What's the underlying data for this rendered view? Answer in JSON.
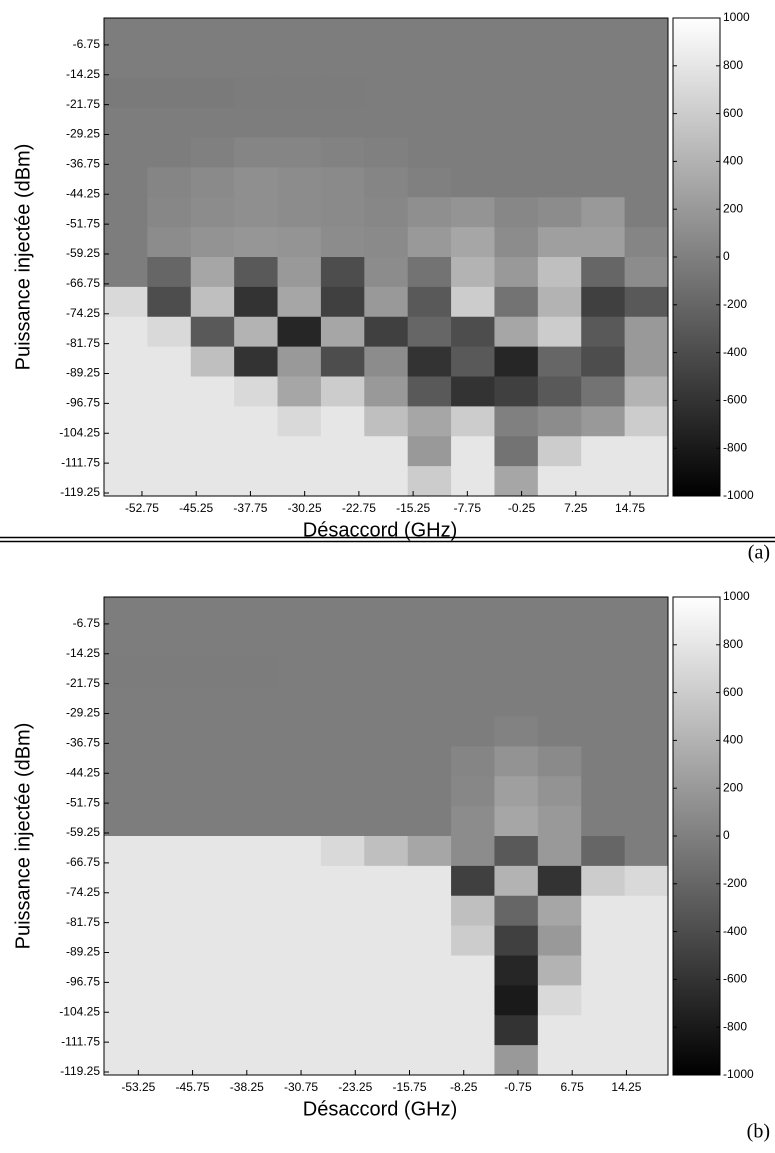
{
  "chart_data": [
    {
      "type": "heatmap",
      "label": "(a)",
      "xlabel": "Désaccord (GHz)",
      "ylabel": "Puissance injectée (dBm)",
      "xlim": [
        -58,
        20
      ],
      "ylim": [
        -120,
        0
      ],
      "xticks": [
        -52.75,
        -45.25,
        -37.75,
        -30.25,
        -22.75,
        -15.25,
        -7.75,
        -0.25,
        7.25,
        14.75
      ],
      "yticks": [
        -6.75,
        -14.25,
        -21.75,
        -29.25,
        -36.75,
        -44.25,
        -51.75,
        -59.25,
        -66.75,
        -74.25,
        -81.75,
        -89.25,
        -96.75,
        -104.25,
        -111.75,
        -119.25
      ],
      "colormap": "gray",
      "clim": [
        -1000,
        1000
      ],
      "cticks": [
        1000,
        800,
        600,
        400,
        200,
        0,
        -200,
        -400,
        -600,
        -800,
        -1000
      ],
      "x_edges": [
        -58,
        -52,
        -46,
        -40,
        -34,
        -28,
        -22,
        -16,
        -10,
        -4,
        2,
        8,
        14,
        20
      ],
      "y_edges": [
        0,
        -7.5,
        -15,
        -22.5,
        -30,
        -37.5,
        -45,
        -52.5,
        -60,
        -67.5,
        -75,
        -82.5,
        -90,
        -97.5,
        -105,
        -112.5,
        -120
      ],
      "z": [
        [
          -20,
          -20,
          -20,
          -20,
          -20,
          -20,
          -20,
          -20,
          -20,
          -20,
          -20,
          -20,
          -20
        ],
        [
          -20,
          -20,
          -20,
          -20,
          -20,
          -20,
          -20,
          -20,
          -20,
          -20,
          -20,
          -20,
          -20
        ],
        [
          -40,
          -40,
          -40,
          -30,
          -30,
          -30,
          -20,
          -20,
          -20,
          -20,
          -20,
          -20,
          -20
        ],
        [
          -20,
          -20,
          -20,
          -20,
          -20,
          -20,
          -20,
          -20,
          -20,
          -20,
          -20,
          -20,
          -20
        ],
        [
          -20,
          -20,
          0,
          40,
          40,
          20,
          0,
          -20,
          -20,
          -20,
          -20,
          -20,
          -20
        ],
        [
          -20,
          40,
          80,
          120,
          100,
          80,
          40,
          0,
          -20,
          -20,
          -20,
          -20,
          -20
        ],
        [
          -20,
          60,
          100,
          120,
          100,
          80,
          60,
          120,
          160,
          60,
          100,
          200,
          -20
        ],
        [
          -20,
          100,
          150,
          180,
          160,
          100,
          80,
          200,
          300,
          100,
          250,
          250,
          40
        ],
        [
          -20,
          -200,
          300,
          -300,
          200,
          -400,
          100,
          -100,
          400,
          200,
          500,
          -200,
          100
        ],
        [
          700,
          -400,
          500,
          -600,
          300,
          -500,
          200,
          -300,
          600,
          -100,
          400,
          -500,
          -300
        ],
        [
          800,
          700,
          -300,
          400,
          -700,
          300,
          -500,
          -200,
          -400,
          300,
          600,
          -300,
          200
        ],
        [
          800,
          800,
          500,
          -600,
          200,
          -400,
          100,
          -600,
          -300,
          -700,
          -200,
          -400,
          200
        ],
        [
          800,
          800,
          800,
          700,
          300,
          600,
          200,
          -300,
          -600,
          -500,
          -300,
          -100,
          400
        ],
        [
          800,
          800,
          800,
          800,
          700,
          800,
          500,
          300,
          600,
          0,
          100,
          200,
          600
        ],
        [
          800,
          800,
          800,
          800,
          800,
          800,
          800,
          200,
          800,
          -100,
          600,
          800,
          800
        ],
        [
          800,
          800,
          800,
          800,
          800,
          800,
          800,
          600,
          800,
          300,
          800,
          800,
          800
        ]
      ]
    },
    {
      "type": "heatmap",
      "label": "(b)",
      "xlabel": "Désaccord (GHz)",
      "ylabel": "Puissance injectée (dBm)",
      "xlim": [
        -58,
        20
      ],
      "ylim": [
        -120,
        0
      ],
      "xticks": [
        -53.25,
        -45.75,
        -38.25,
        -30.75,
        -23.25,
        -15.75,
        -8.25,
        -0.75,
        6.75,
        14.25
      ],
      "yticks": [
        -6.75,
        -14.25,
        -21.75,
        -29.25,
        -36.75,
        -44.25,
        -51.75,
        -59.25,
        -66.75,
        -74.25,
        -81.75,
        -89.25,
        -96.75,
        -104.25,
        -111.75,
        -119.25
      ],
      "colormap": "gray",
      "clim": [
        -1000,
        1000
      ],
      "cticks": [
        1000,
        800,
        600,
        400,
        200,
        0,
        -200,
        -400,
        -600,
        -800,
        -1000
      ],
      "x_edges": [
        -58,
        -52,
        -46,
        -40,
        -34,
        -28,
        -22,
        -16,
        -10,
        -4,
        2,
        8,
        14,
        20
      ],
      "y_edges": [
        0,
        -7.5,
        -15,
        -22.5,
        -30,
        -37.5,
        -45,
        -52.5,
        -60,
        -67.5,
        -75,
        -82.5,
        -90,
        -97.5,
        -105,
        -112.5,
        -120
      ],
      "z": [
        [
          -20,
          -20,
          -20,
          -20,
          -20,
          -20,
          -20,
          -20,
          -20,
          -20,
          -20,
          -20,
          -20
        ],
        [
          -20,
          -20,
          -20,
          -20,
          -20,
          -20,
          -20,
          -20,
          -20,
          -20,
          -20,
          -20,
          -20
        ],
        [
          -30,
          -30,
          -30,
          -30,
          -20,
          -20,
          -20,
          -20,
          -20,
          -20,
          -20,
          -20,
          -20
        ],
        [
          -20,
          -20,
          -20,
          -20,
          -20,
          -20,
          -20,
          -20,
          -20,
          -20,
          -20,
          -20,
          -20
        ],
        [
          -20,
          -20,
          -20,
          -20,
          -20,
          -20,
          -20,
          -20,
          -20,
          20,
          -20,
          -20,
          -20
        ],
        [
          -20,
          -20,
          -20,
          -20,
          -20,
          -20,
          -20,
          -20,
          40,
          150,
          80,
          -20,
          -20
        ],
        [
          -20,
          -20,
          -20,
          -20,
          -20,
          -20,
          -20,
          -20,
          60,
          250,
          150,
          -20,
          -20
        ],
        [
          -20,
          -20,
          -20,
          -20,
          -20,
          -20,
          -20,
          -20,
          100,
          300,
          200,
          -20,
          -20
        ],
        [
          800,
          800,
          800,
          800,
          800,
          700,
          500,
          300,
          100,
          -300,
          200,
          -200,
          -20
        ],
        [
          800,
          800,
          800,
          800,
          800,
          800,
          800,
          800,
          -500,
          400,
          -600,
          600,
          700
        ],
        [
          800,
          800,
          800,
          800,
          800,
          800,
          800,
          800,
          500,
          -200,
          300,
          800,
          800
        ],
        [
          800,
          800,
          800,
          800,
          800,
          800,
          800,
          800,
          600,
          -500,
          200,
          800,
          800
        ],
        [
          800,
          800,
          800,
          800,
          800,
          800,
          800,
          800,
          800,
          -700,
          400,
          800,
          800
        ],
        [
          800,
          800,
          800,
          800,
          800,
          800,
          800,
          800,
          800,
          -800,
          700,
          800,
          800
        ],
        [
          800,
          800,
          800,
          800,
          800,
          800,
          800,
          800,
          800,
          -600,
          800,
          800,
          800
        ],
        [
          800,
          800,
          800,
          800,
          800,
          800,
          800,
          800,
          800,
          200,
          800,
          800,
          800
        ]
      ]
    }
  ]
}
